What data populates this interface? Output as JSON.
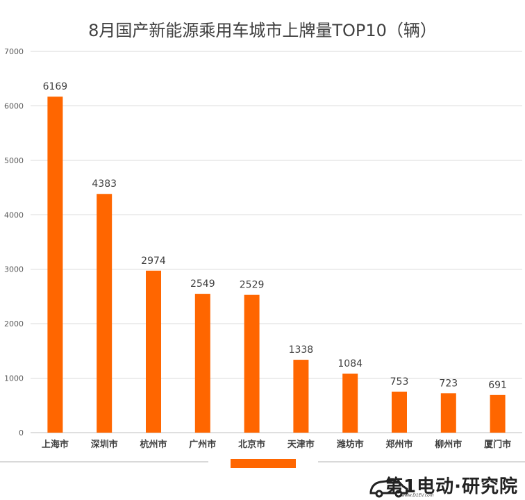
{
  "chart_data": {
    "type": "bar",
    "title": "8月国产新能源乘用车城市上牌量TOP10（辆）",
    "categories": [
      "上海市",
      "深圳市",
      "杭州市",
      "广州市",
      "北京市",
      "天津市",
      "潍坊市",
      "郑州市",
      "柳州市",
      "厦门市"
    ],
    "values": [
      6169,
      4383,
      2974,
      2549,
      2529,
      1338,
      1084,
      753,
      723,
      691
    ],
    "ylim": [
      0,
      7000
    ],
    "yticks": [
      0,
      1000,
      2000,
      3000,
      4000,
      5000,
      6000,
      7000
    ],
    "grid": true,
    "bar_color": "#ff6600",
    "xlabel": "",
    "ylabel": ""
  },
  "branding": {
    "logo_text": "第1电动·研究院",
    "logo_url": "www.D1EV.com"
  }
}
